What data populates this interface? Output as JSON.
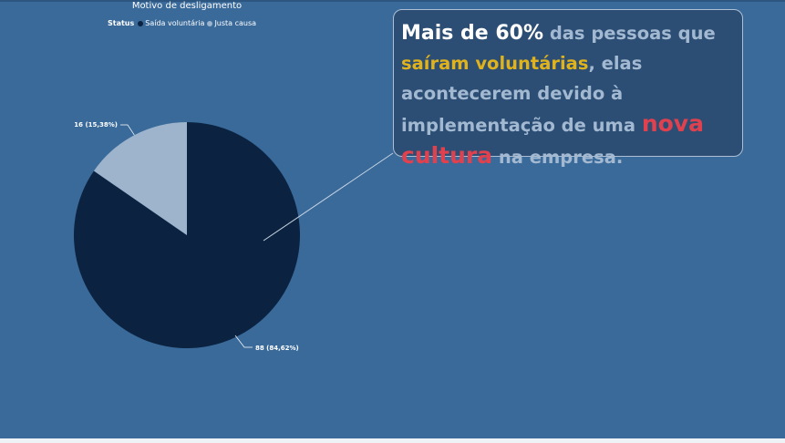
{
  "chart_data": {
    "type": "pie",
    "title": "Motivo de desligamento",
    "legend": {
      "title": "Status",
      "position": "top-left",
      "items": [
        {
          "name": "Saída voluntária",
          "color": "#0b2340"
        },
        {
          "name": "Justa causa",
          "color": "#9db4cc"
        }
      ]
    },
    "series": [
      {
        "name": "Saída voluntária",
        "value": 88,
        "percent": "84,62%",
        "label": "88 (84,62%)",
        "color": "#0b2340"
      },
      {
        "name": "Justa causa",
        "value": 16,
        "percent": "15,38%",
        "label": "16 (15,38%)",
        "color": "#9db4cc"
      }
    ]
  },
  "callout": {
    "part1": "Mais de 60%",
    "part2": " das pessoas que ",
    "part3": "saíram voluntárias",
    "part4": ", elas acontecerem devido à implementação de uma ",
    "part5": "nova cultura",
    "part6": " na empresa."
  },
  "colors": {
    "background": "#3a6a9a",
    "callout_background": "#2c4e74",
    "highlight_yellow": "#e0b21c",
    "highlight_red": "#e0414e"
  }
}
